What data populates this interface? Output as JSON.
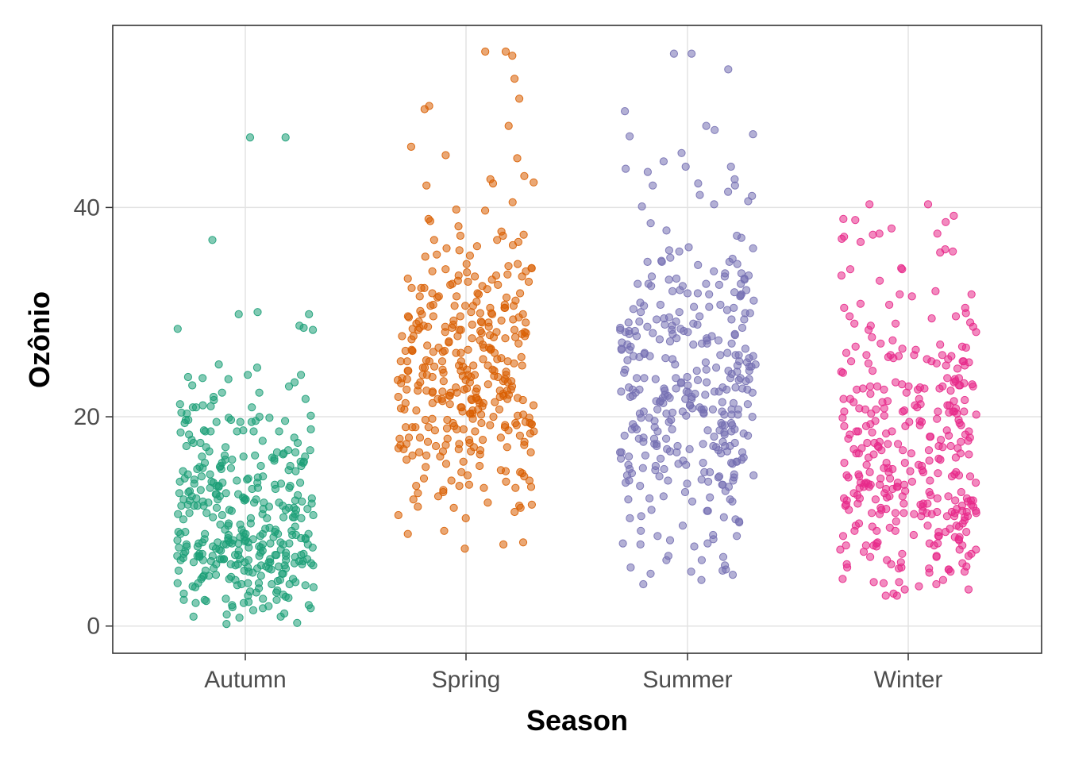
{
  "chart_data": {
    "type": "scatter",
    "subtype": "jitter",
    "title": "",
    "xlabel": "Season",
    "ylabel": "Ozônio",
    "categories": [
      "Autumn",
      "Spring",
      "Summer",
      "Winter"
    ],
    "ylim": [
      -2.6,
      57.4
    ],
    "yticks": [
      0,
      20,
      40
    ],
    "grid": true,
    "legend": "none",
    "series": [
      {
        "category": "Autumn",
        "color": "#1b9e77",
        "n_points": 380,
        "median": 9,
        "q1": 6,
        "q3": 14,
        "min": 0.2,
        "max": 46.7,
        "outliers": [
          46.7,
          36.9,
          30.0,
          29.8,
          29.8,
          28.7,
          28.5,
          28.4,
          28.3
        ]
      },
      {
        "category": "Spring",
        "color": "#d95f02",
        "n_points": 370,
        "median": 24,
        "q1": 19,
        "q3": 29,
        "min": 7.4,
        "max": 54.9,
        "outliers": [
          54.9,
          54.5,
          52.3,
          50.4,
          49.7,
          49.4,
          47.8,
          45.8,
          45.0,
          44.7,
          43.0,
          42.7,
          42.4,
          42.3,
          42.1
        ]
      },
      {
        "category": "Summer",
        "color": "#7570b3",
        "n_points": 370,
        "median": 22,
        "q1": 16,
        "q3": 28,
        "min": 4.0,
        "max": 54.7,
        "outliers": [
          54.7,
          53.2,
          49.2,
          47.8,
          47.4,
          47.0,
          46.8,
          43.9,
          43.7,
          43.4,
          42.7,
          42.3,
          42.1,
          41.5,
          40.6,
          40.3
        ]
      },
      {
        "category": "Winter",
        "color": "#e7298a",
        "n_points": 360,
        "median": 15,
        "q1": 10,
        "q3": 22,
        "min": 2.9,
        "max": 40.3,
        "outliers": [
          40.3,
          39.2,
          38.8,
          38.6,
          37.5,
          37.2,
          37.0,
          36.0,
          35.8,
          35.7
        ]
      }
    ]
  }
}
